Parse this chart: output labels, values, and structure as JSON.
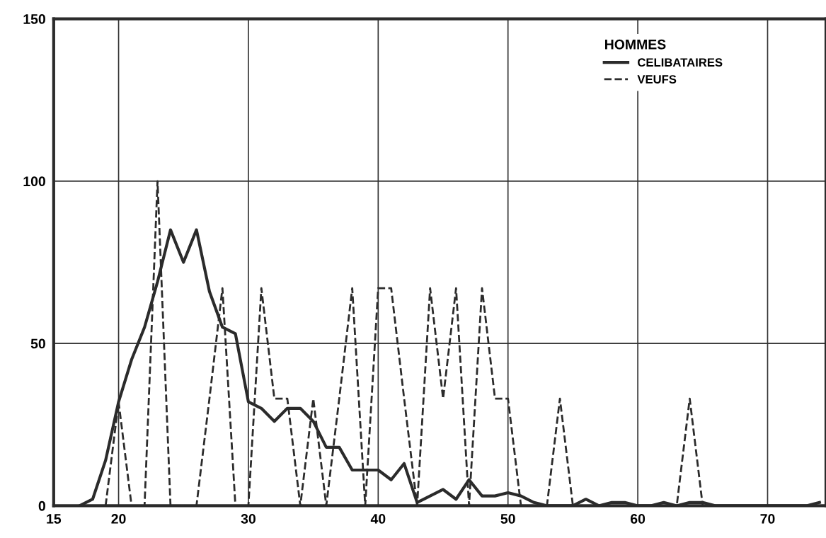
{
  "chart_data": {
    "type": "line",
    "legend_title": "HOMMES",
    "series": [
      {
        "name": "CELIBATAIRES",
        "color": "#2b2b2b",
        "line_style": "solid",
        "x": [
          17,
          18,
          19,
          20,
          21,
          22,
          23,
          24,
          25,
          26,
          27,
          28,
          29,
          30,
          31,
          32,
          33,
          34,
          35,
          36,
          37,
          38,
          39,
          40,
          41,
          42,
          43,
          44,
          45,
          46,
          47,
          48,
          49,
          50,
          51,
          52,
          53,
          54,
          55,
          56,
          57,
          58,
          59,
          60,
          61,
          62,
          63,
          64,
          65,
          66,
          67,
          68,
          69,
          70,
          71,
          72,
          73,
          74
        ],
        "values": [
          0,
          2,
          14,
          32,
          45,
          55,
          69,
          85,
          75,
          85,
          66,
          55,
          53,
          32,
          30,
          26,
          30,
          30,
          26,
          18,
          18,
          11,
          11,
          11,
          8,
          13,
          1,
          3,
          5,
          2,
          8,
          3,
          3,
          4,
          3,
          1,
          0,
          0,
          0,
          2,
          0,
          1,
          1,
          0,
          0,
          1,
          0,
          1,
          1,
          0,
          0,
          0,
          0,
          0,
          0,
          0,
          0,
          1
        ]
      },
      {
        "name": "VEUFS",
        "color": "#2b2b2b",
        "line_style": "dashed",
        "x": [
          19,
          20,
          21,
          22,
          23,
          24,
          25,
          26,
          27,
          28,
          29,
          30,
          31,
          32,
          33,
          34,
          35,
          36,
          37,
          38,
          39,
          40,
          41,
          42,
          43,
          44,
          45,
          46,
          47,
          48,
          49,
          50,
          51,
          52,
          53,
          54,
          55,
          56,
          57,
          58,
          59,
          60,
          61,
          62,
          63,
          64,
          65
        ],
        "values": [
          0,
          32,
          0,
          0,
          100,
          0,
          0,
          0,
          33,
          67,
          0,
          0,
          67,
          33,
          33,
          0,
          33,
          0,
          33,
          67,
          0,
          67,
          67,
          33,
          0,
          67,
          33,
          67,
          0,
          67,
          33,
          33,
          0,
          0,
          0,
          33,
          0,
          0,
          0,
          0,
          0,
          0,
          0,
          0,
          0,
          33,
          0
        ]
      }
    ],
    "xlim": [
      15,
      74.5
    ],
    "xticks": [
      15,
      20,
      30,
      40,
      50,
      60,
      70
    ],
    "ylim": [
      0,
      150
    ],
    "yticks": [
      0,
      50,
      100,
      150
    ],
    "grid": true,
    "legend": "top right"
  }
}
